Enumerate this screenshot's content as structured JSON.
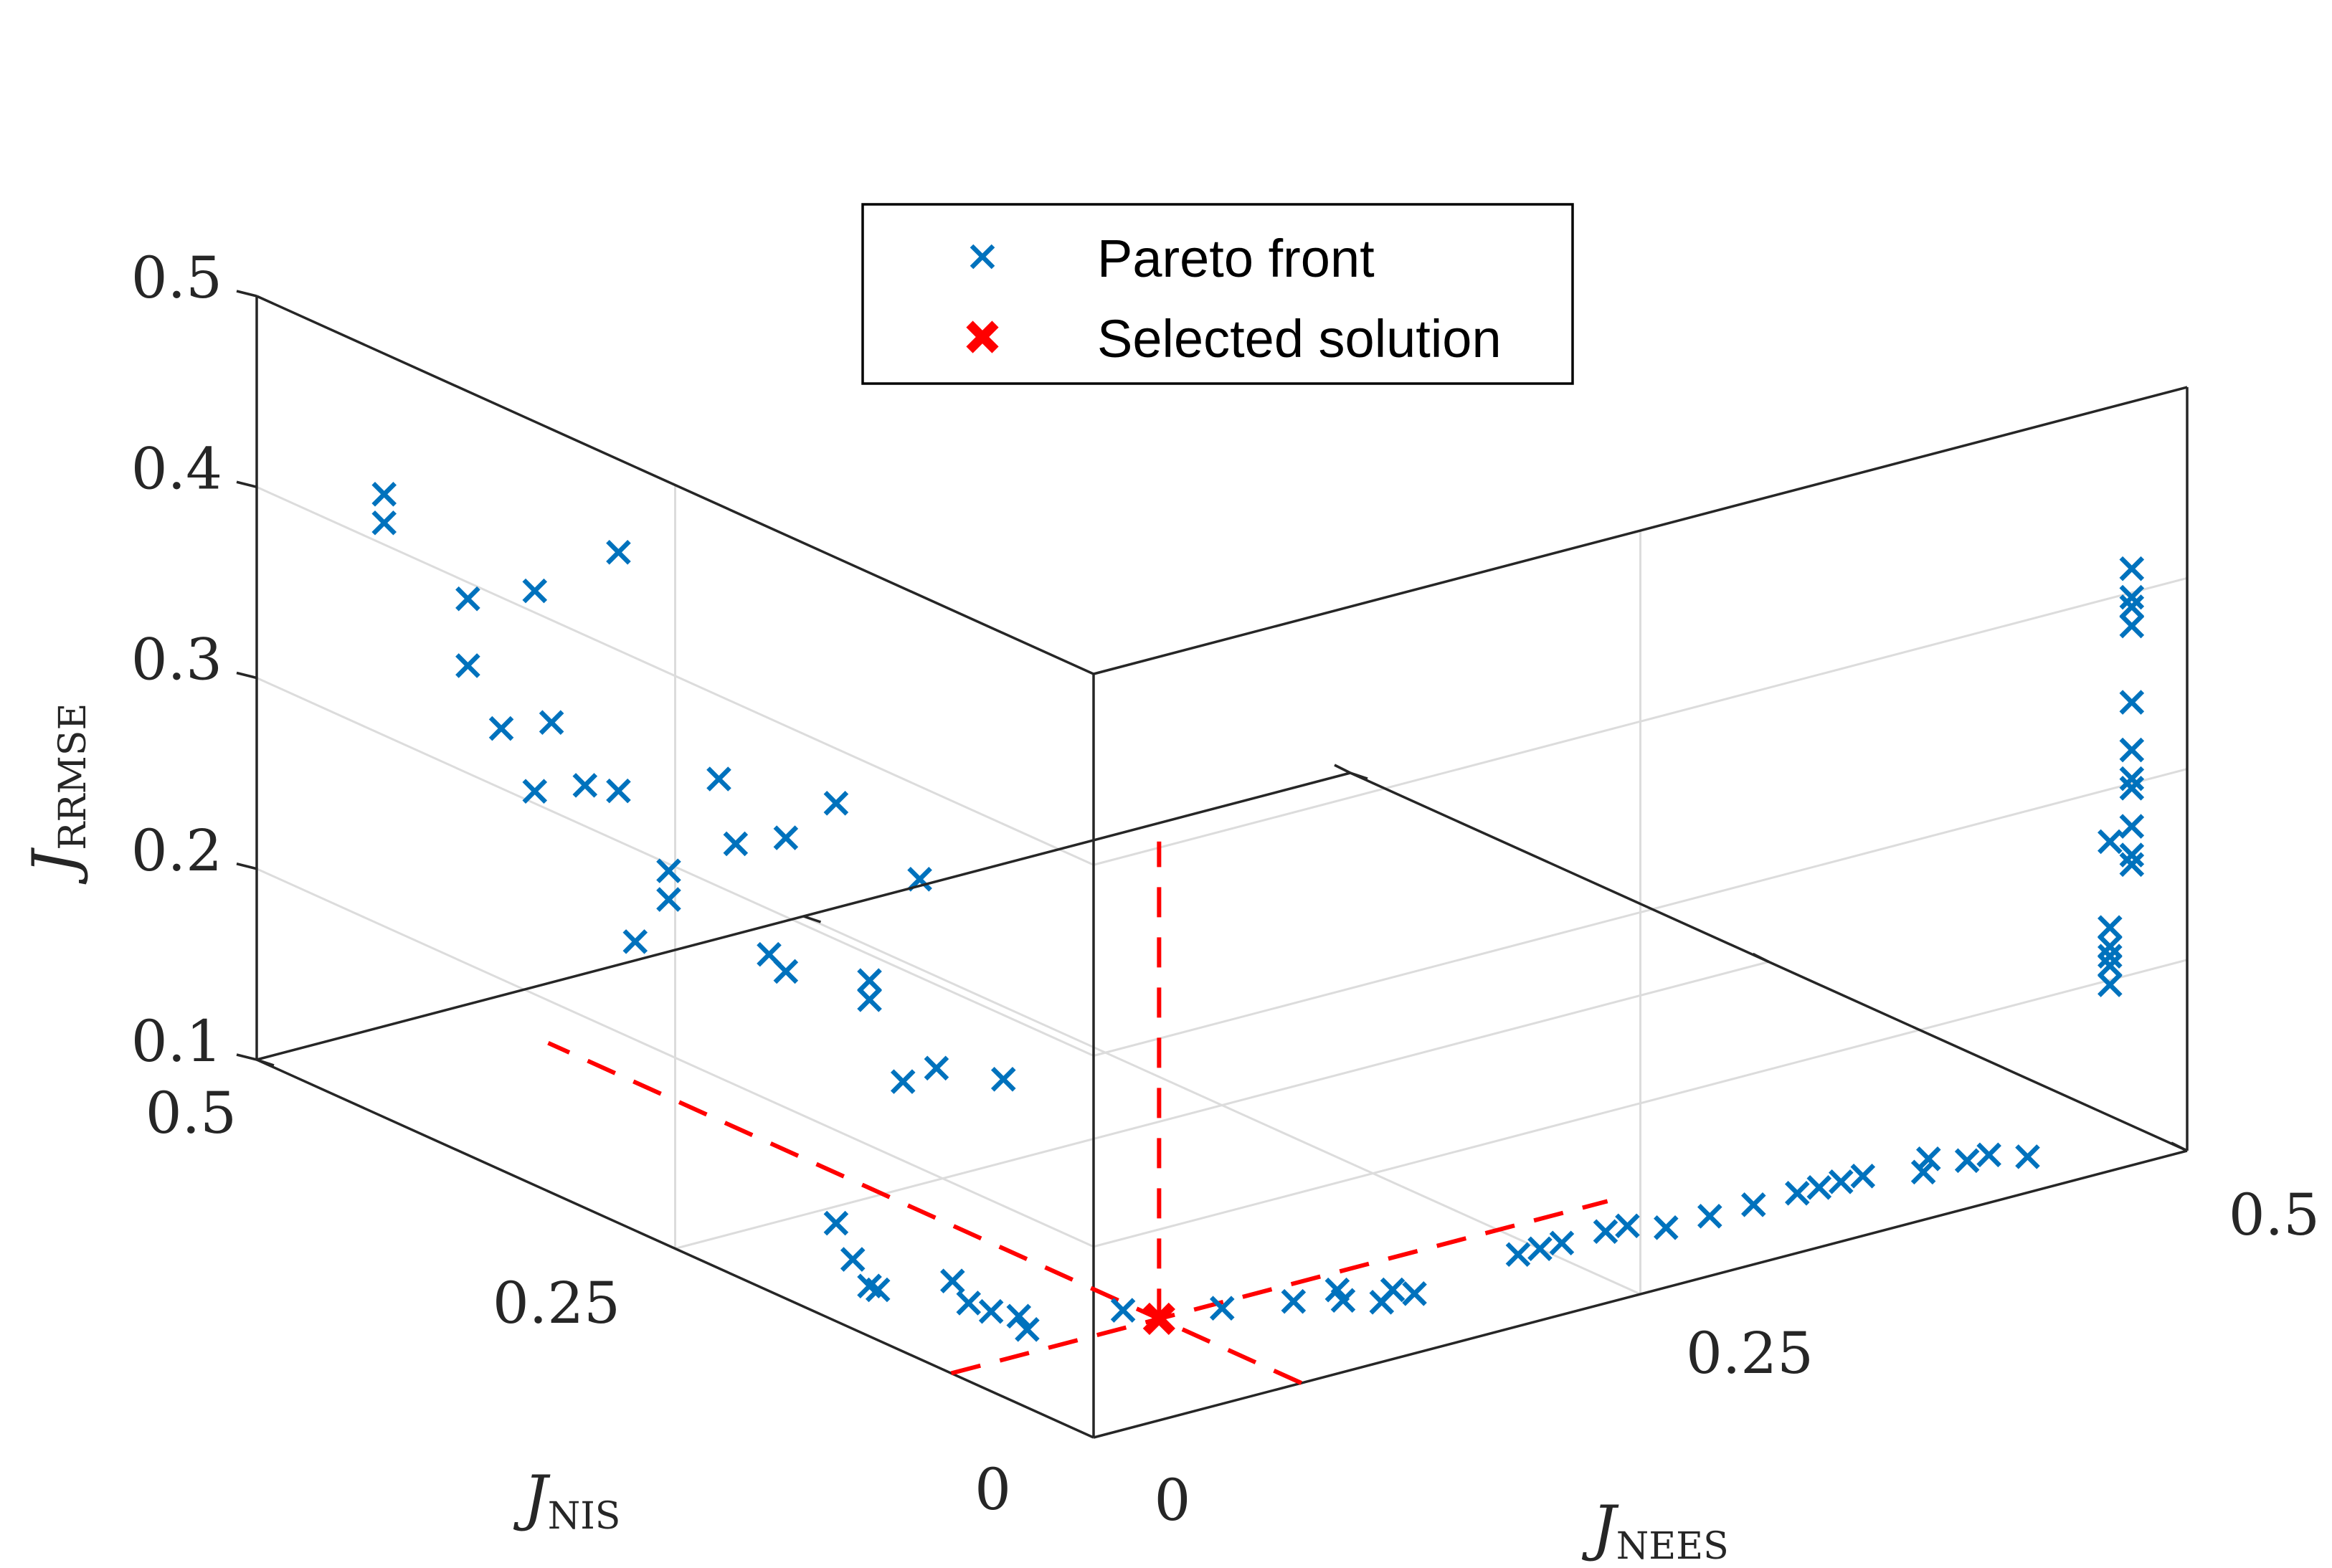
{
  "chart_data": {
    "type": "scatter3d",
    "axes": {
      "x": {
        "label_main": "J",
        "label_sub": "NEES",
        "lim": [
          0,
          0.5
        ],
        "ticks": [
          "0",
          "0.25",
          "0.5"
        ]
      },
      "y": {
        "label_main": "J",
        "label_sub": "NIS",
        "lim": [
          0,
          0.5
        ],
        "ticks": [
          "0",
          "0.25",
          "0.5"
        ]
      },
      "z": {
        "label_main": "J",
        "label_sub": "RRMSE",
        "lim": [
          0.1,
          0.5
        ],
        "ticks": [
          "0.1",
          "0.2",
          "0.3",
          "0.4",
          "0.5"
        ]
      }
    },
    "grid": true,
    "legend": {
      "position": "top-center",
      "entries": [
        {
          "label": "Pareto front",
          "marker": "x",
          "color": "#0072bd"
        },
        {
          "label": "Selected solution",
          "marker": "x-bold",
          "color": "#ff0000"
        }
      ]
    },
    "colors": {
      "pareto": "#0072bd",
      "selected": "#ff0000",
      "box": "#262626",
      "grid": "#dcdcdc"
    },
    "series": [
      {
        "name": "Pareto front",
        "points": [
          [
            0.02,
            0.45,
            0.41
          ],
          [
            0.02,
            0.45,
            0.395
          ],
          [
            0.02,
            0.4,
            0.375
          ],
          [
            0.02,
            0.36,
            0.395
          ],
          [
            0.02,
            0.31,
            0.435
          ],
          [
            0.02,
            0.4,
            0.34
          ],
          [
            0.02,
            0.38,
            0.315
          ],
          [
            0.02,
            0.35,
            0.33
          ],
          [
            0.02,
            0.33,
            0.305
          ],
          [
            0.02,
            0.36,
            0.29
          ],
          [
            0.02,
            0.31,
            0.31
          ],
          [
            0.02,
            0.25,
            0.34
          ],
          [
            0.02,
            0.28,
            0.28
          ],
          [
            0.02,
            0.28,
            0.265
          ],
          [
            0.02,
            0.21,
            0.325
          ],
          [
            0.02,
            0.24,
            0.31
          ],
          [
            0.02,
            0.18,
            0.355
          ],
          [
            0.02,
            0.22,
            0.26
          ],
          [
            0.02,
            0.21,
            0.255
          ],
          [
            0.02,
            0.16,
            0.27
          ],
          [
            0.02,
            0.3,
            0.235
          ],
          [
            0.02,
            0.16,
            0.26
          ],
          [
            0.02,
            0.13,
            0.335
          ],
          [
            0.02,
            0.14,
            0.225
          ],
          [
            0.02,
            0.12,
            0.24
          ],
          [
            0.02,
            0.08,
            0.25
          ],
          [
            0.02,
            0.18,
            0.135
          ],
          [
            0.02,
            0.17,
            0.12
          ],
          [
            0.02,
            0.16,
            0.11
          ],
          [
            0.02,
            0.155,
            0.11
          ],
          [
            0.05,
            0.14,
            0.1
          ],
          [
            0.035,
            0.13,
            0.12
          ],
          [
            0.045,
            0.12,
            0.105
          ],
          [
            0.05,
            0.11,
            0.105
          ],
          [
            0.05,
            0.105,
            0.1
          ],
          [
            0.09,
            0.1,
            0.1
          ],
          [
            0.12,
            0.08,
            0.1
          ],
          [
            0.145,
            0.07,
            0.1
          ],
          [
            0.16,
            0.06,
            0.1
          ],
          [
            0.175,
            0.05,
            0.105
          ],
          [
            0.165,
            0.07,
            0.1
          ],
          [
            0.17,
            0.05,
            0.1
          ],
          [
            0.185,
            0.05,
            0.1
          ],
          [
            0.24,
            0.06,
            0.1
          ],
          [
            0.25,
            0.06,
            0.1
          ],
          [
            0.26,
            0.06,
            0.1
          ],
          [
            0.28,
            0.06,
            0.1
          ],
          [
            0.29,
            0.06,
            0.1
          ],
          [
            0.3,
            0.05,
            0.1
          ],
          [
            0.32,
            0.05,
            0.1
          ],
          [
            0.34,
            0.05,
            0.1
          ],
          [
            0.36,
            0.05,
            0.1
          ],
          [
            0.37,
            0.05,
            0.1
          ],
          [
            0.38,
            0.05,
            0.1
          ],
          [
            0.39,
            0.05,
            0.1
          ],
          [
            0.41,
            0.04,
            0.1
          ],
          [
            0.42,
            0.05,
            0.1
          ],
          [
            0.43,
            0.04,
            0.1
          ],
          [
            0.44,
            0.04,
            0.1
          ],
          [
            0.45,
            0.03,
            0.1
          ],
          [
            0.48,
            0.02,
            0.195
          ],
          [
            0.48,
            0.02,
            0.185
          ],
          [
            0.48,
            0.02,
            0.205
          ],
          [
            0.48,
            0.02,
            0.215
          ],
          [
            0.48,
            0.02,
            0.2
          ],
          [
            0.49,
            0.02,
            0.245
          ],
          [
            0.49,
            0.02,
            0.25
          ],
          [
            0.48,
            0.02,
            0.26
          ],
          [
            0.49,
            0.02,
            0.265
          ],
          [
            0.49,
            0.02,
            0.29
          ],
          [
            0.49,
            0.02,
            0.285
          ],
          [
            0.49,
            0.02,
            0.305
          ],
          [
            0.49,
            0.02,
            0.33
          ],
          [
            0.49,
            0.02,
            0.37
          ],
          [
            0.49,
            0.02,
            0.38
          ],
          [
            0.49,
            0.02,
            0.385
          ],
          [
            0.49,
            0.02,
            0.4
          ]
        ]
      },
      {
        "name": "Selected solution",
        "points": [
          [
            0.095,
            0.085,
            0.1
          ]
        ],
        "guides_to": {
          "x": [
            0,
            0.3
          ],
          "y": [
            0,
            0.45
          ],
          "z": [
            0.1,
            0.35
          ]
        }
      }
    ]
  }
}
